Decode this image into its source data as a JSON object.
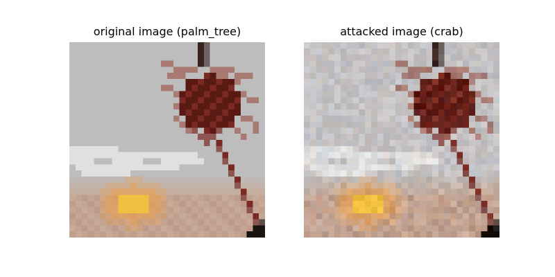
{
  "panels": {
    "original": {
      "title": "original image (palm_tree)"
    },
    "attacked": {
      "title": "attacked image (crab)"
    }
  },
  "colors": {
    "sky": "#bdbdbd",
    "sky_noisy": "#c4c2c4",
    "cloud": "#ececec",
    "palm_dark": "#5a1a14",
    "palm_mid": "#7a2a22",
    "palm_light": "#a87a72",
    "trunk": "#3a2420",
    "sun": "#f2c040",
    "sun_halo": "#e8a050",
    "sand": "#c8aa98",
    "sand_dark": "#b89484",
    "corner_dark": "#1a1410"
  }
}
